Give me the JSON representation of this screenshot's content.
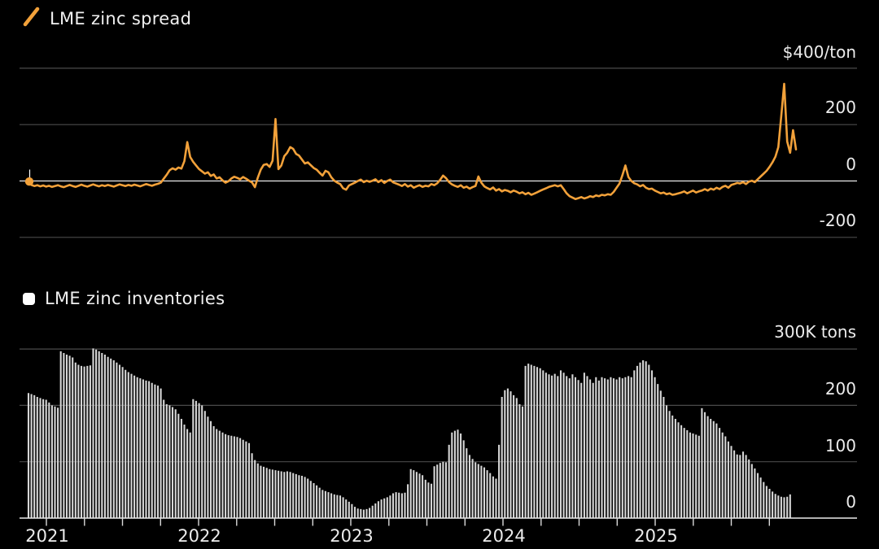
{
  "charts": {
    "spread": {
      "legend_label": "LME zinc spread",
      "ytick_labels": [
        "$400/ton",
        "200",
        "0",
        "-200"
      ]
    },
    "inventories": {
      "legend_label": "LME zinc inventories",
      "ytick_labels": [
        "300K tons",
        "200",
        "100",
        "0"
      ]
    }
  },
  "x_axis": {
    "year_labels": [
      "2021",
      "2022",
      "2023",
      "2024",
      "2025"
    ]
  },
  "colors": {
    "background": "#000000",
    "text": "#ececec",
    "spread_line": "#f2a13a",
    "inventory_bar": "#d6d6d6",
    "grid": "#4a4a4a",
    "zero_line": "#eaeaea",
    "tick": "#d9d9d9"
  },
  "chart_data": [
    {
      "type": "line",
      "title": "LME zinc spread",
      "ylabel": "$/ton",
      "ylim": [
        -200,
        400
      ],
      "yticks": [
        400,
        200,
        0,
        -200
      ],
      "zero_line": 0,
      "x_year_ticks": [
        2021,
        2022,
        2023,
        2024,
        2025
      ],
      "legend_position": "top-left",
      "grid": "horizontal",
      "values": [
        -2,
        -14,
        -18,
        -15,
        -19,
        -16,
        -20,
        -17,
        -21,
        -18,
        -15,
        -19,
        -22,
        -18,
        -14,
        -18,
        -21,
        -17,
        -13,
        -17,
        -20,
        -16,
        -12,
        -16,
        -19,
        -15,
        -18,
        -14,
        -17,
        -20,
        -16,
        -12,
        -15,
        -18,
        -14,
        -17,
        -13,
        -16,
        -19,
        -15,
        -11,
        -14,
        -17,
        -13,
        -10,
        -6,
        8,
        22,
        38,
        45,
        40,
        48,
        44,
        70,
        138,
        85,
        68,
        55,
        42,
        34,
        26,
        31,
        18,
        23,
        9,
        13,
        2,
        -6,
        -1,
        9,
        15,
        11,
        6,
        14,
        8,
        1,
        -5,
        -22,
        12,
        40,
        57,
        60,
        50,
        72,
        220,
        42,
        55,
        88,
        100,
        120,
        114,
        96,
        90,
        76,
        62,
        66,
        56,
        46,
        40,
        29,
        19,
        36,
        31,
        13,
        1,
        -6,
        -11,
        -26,
        -31,
        -16,
        -11,
        -6,
        0,
        5,
        -4,
        1,
        -3,
        1,
        6,
        -4,
        3,
        -7,
        0,
        5,
        -5,
        -9,
        -13,
        -18,
        -11,
        -20,
        -15,
        -24,
        -19,
        -15,
        -21,
        -17,
        -19,
        -11,
        -15,
        -8,
        4,
        19,
        10,
        -4,
        -12,
        -17,
        -21,
        -15,
        -24,
        -20,
        -27,
        -22,
        -18,
        16,
        -6,
        -19,
        -25,
        -30,
        -23,
        -34,
        -29,
        -37,
        -32,
        -35,
        -40,
        -34,
        -38,
        -44,
        -40,
        -47,
        -42,
        -49,
        -45,
        -40,
        -35,
        -30,
        -26,
        -21,
        -18,
        -15,
        -19,
        -15,
        -29,
        -44,
        -54,
        -59,
        -64,
        -61,
        -57,
        -62,
        -59,
        -54,
        -57,
        -51,
        -54,
        -49,
        -51,
        -47,
        -49,
        -39,
        -24,
        -9,
        21,
        55,
        14,
        0,
        -8,
        -12,
        -19,
        -14,
        -24,
        -29,
        -27,
        -34,
        -39,
        -44,
        -41,
        -47,
        -44,
        -49,
        -47,
        -44,
        -41,
        -37,
        -44,
        -39,
        -34,
        -41,
        -37,
        -34,
        -29,
        -34,
        -27,
        -31,
        -24,
        -29,
        -21,
        -17,
        -24,
        -14,
        -11,
        -7,
        -9,
        -4,
        -11,
        -2,
        1,
        -4,
        6,
        16,
        26,
        36,
        50,
        66,
        86,
        120,
        230,
        345,
        140,
        100,
        180,
        112
      ]
    },
    {
      "type": "bar",
      "title": "LME zinc inventories",
      "ylabel": "K tons",
      "ylim": [
        0,
        300
      ],
      "yticks": [
        300,
        200,
        100,
        0
      ],
      "x_year_ticks": [
        2021,
        2022,
        2023,
        2024,
        2025
      ],
      "legend_position": "top-left",
      "grid": "horizontal",
      "values": [
        222,
        220,
        218,
        215,
        213,
        211,
        210,
        205,
        200,
        198,
        196,
        296,
        293,
        290,
        288,
        285,
        276,
        272,
        270,
        269,
        270,
        271,
        301,
        299,
        296,
        293,
        290,
        286,
        283,
        280,
        276,
        272,
        268,
        263,
        259,
        256,
        253,
        250,
        248,
        246,
        244,
        243,
        240,
        237,
        235,
        230,
        210,
        202,
        200,
        197,
        193,
        185,
        176,
        166,
        158,
        152,
        211,
        208,
        204,
        200,
        190,
        180,
        172,
        163,
        158,
        155,
        152,
        149,
        147,
        146,
        145,
        144,
        142,
        139,
        136,
        133,
        115,
        103,
        97,
        93,
        91,
        89,
        87,
        86,
        85,
        84,
        83,
        82,
        83,
        82,
        80,
        78,
        76,
        75,
        73,
        70,
        66,
        62,
        58,
        54,
        50,
        48,
        46,
        44,
        42,
        41,
        40,
        37,
        33,
        29,
        25,
        20,
        17,
        16,
        15,
        16,
        18,
        22,
        26,
        30,
        33,
        35,
        37,
        40,
        44,
        46,
        45,
        44,
        45,
        60,
        87,
        85,
        82,
        79,
        76,
        68,
        63,
        61,
        92,
        95,
        98,
        100,
        99,
        130,
        152,
        155,
        157,
        150,
        138,
        124,
        112,
        105,
        99,
        96,
        93,
        90,
        85,
        80,
        74,
        70,
        130,
        215,
        227,
        230,
        225,
        218,
        213,
        202,
        198,
        270,
        274,
        272,
        270,
        268,
        266,
        262,
        258,
        255,
        253,
        256,
        252,
        262,
        258,
        252,
        248,
        255,
        250,
        245,
        240,
        258,
        252,
        246,
        240,
        250,
        244,
        250,
        248,
        246,
        250,
        248,
        246,
        250,
        248,
        250,
        252,
        250,
        262,
        270,
        276,
        280,
        278,
        272,
        262,
        250,
        238,
        226,
        215,
        200,
        190,
        182,
        176,
        170,
        165,
        160,
        156,
        152,
        150,
        148,
        146,
        195,
        188,
        181,
        176,
        172,
        168,
        160,
        152,
        145,
        136,
        128,
        120,
        113,
        112,
        118,
        112,
        104,
        96,
        88,
        80,
        72,
        64,
        57,
        52,
        47,
        43,
        40,
        38,
        37,
        38,
        42
      ]
    }
  ]
}
